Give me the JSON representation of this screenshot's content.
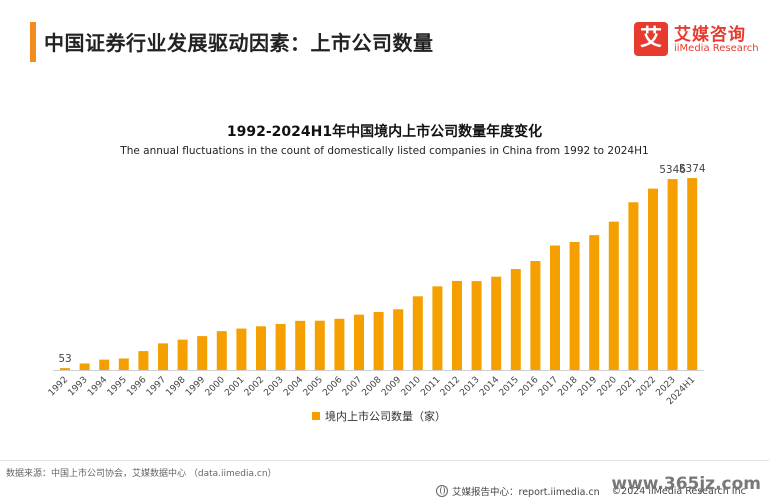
{
  "page_title": "中国证券行业发展驱动因素：上市公司数量",
  "logo": {
    "mark": "艾",
    "name_cn": "艾媒咨询",
    "name_en": "iiMedia Research"
  },
  "chart_data": {
    "type": "bar",
    "title": "1992-2024H1年中国境内上市公司数量年度变化",
    "subtitle": "The annual fluctuations in the count of domestically listed companies in China from 1992 to 2024H1",
    "categories": [
      "1992",
      "1993",
      "1994",
      "1995",
      "1996",
      "1997",
      "1998",
      "1999",
      "2000",
      "2001",
      "2002",
      "2003",
      "2004",
      "2005",
      "2006",
      "2007",
      "2008",
      "2009",
      "2010",
      "2011",
      "2012",
      "2013",
      "2014",
      "2015",
      "2016",
      "2017",
      "2018",
      "2019",
      "2020",
      "2021",
      "2022",
      "2023",
      "2024H1"
    ],
    "series": [
      {
        "name": "境内上市公司数量（家）",
        "color": "#f5a000",
        "values": [
          53,
          183,
          291,
          323,
          530,
          745,
          851,
          949,
          1088,
          1160,
          1224,
          1287,
          1377,
          1381,
          1434,
          1550,
          1625,
          1700,
          2063,
          2342,
          2494,
          2489,
          2613,
          2827,
          3052,
          3485,
          3584,
          3777,
          4154,
          4697,
          5079,
          5346,
          5374
        ]
      }
    ],
    "data_labels": {
      "0": "53",
      "31": "5346",
      "32": "5374"
    },
    "ylim": [
      0,
      5600
    ],
    "grid": false,
    "legend": "bottom"
  },
  "footer": {
    "source": "数据来源：中国上市公司协会，艾媒数据中心 （data.iimedia.cn）",
    "report": "艾媒报告中心：report.iimedia.cn",
    "copyright": "©2024  iiMedia Research Inc",
    "watermark": "www.365jz.com"
  }
}
